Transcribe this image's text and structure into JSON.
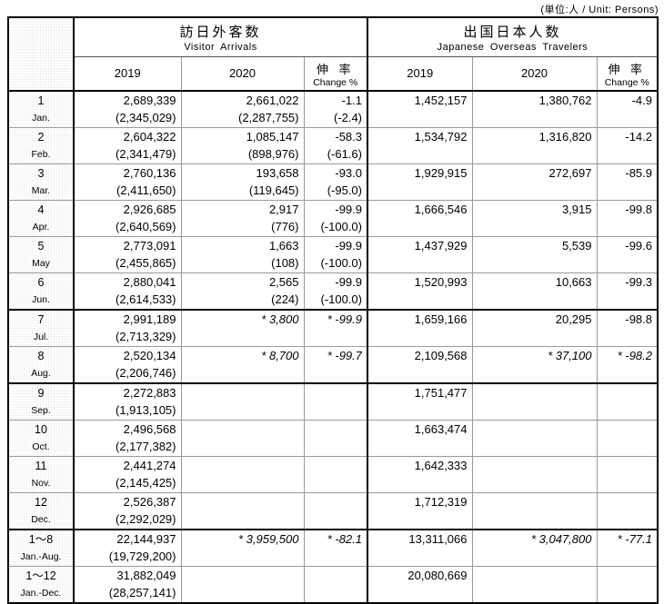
{
  "unit_note": "(単位:人 / Unit: Persons)",
  "table": {
    "groups": [
      {
        "title": "訪日外客数",
        "subtitle": "Visitor Arrivals"
      },
      {
        "title": "出国日本人数",
        "subtitle": "Japanese Overseas Travelers"
      }
    ],
    "col_headers": {
      "y2019": "2019",
      "y2020": "2020",
      "change_jp": "伸 率",
      "change_en": "Change %"
    },
    "rows": [
      {
        "num": "1",
        "abbr": "Jan.",
        "v2019": "2,689,339",
        "v2019p": "(2,345,029)",
        "v2020": "2,661,022",
        "v2020p": "(2,287,755)",
        "vchg": "-1.1",
        "vchgp": "(-2.4)",
        "j2019": "1,452,157",
        "j2020": "1,380,762",
        "jchg": "-4.9",
        "top": "none"
      },
      {
        "num": "2",
        "abbr": "Feb.",
        "v2019": "2,604,322",
        "v2019p": "(2,341,479)",
        "v2020": "1,085,147",
        "v2020p": "(898,976)",
        "vchg": "-58.3",
        "vchgp": "(-61.6)",
        "j2019": "1,534,792",
        "j2020": "1,316,820",
        "jchg": "-14.2",
        "top": "gray"
      },
      {
        "num": "3",
        "abbr": "Mar.",
        "v2019": "2,760,136",
        "v2019p": "(2,411,650)",
        "v2020": "193,658",
        "v2020p": "(119,645)",
        "vchg": "-93.0",
        "vchgp": "(-95.0)",
        "j2019": "1,929,915",
        "j2020": "272,697",
        "jchg": "-85.9",
        "top": "gray"
      },
      {
        "num": "4",
        "abbr": "Apr.",
        "v2019": "2,926,685",
        "v2019p": "(2,640,569)",
        "v2020": "2,917",
        "v2020p": "(776)",
        "vchg": "-99.9",
        "vchgp": "(-100.0)",
        "j2019": "1,666,546",
        "j2020": "3,915",
        "jchg": "-99.8",
        "top": "gray"
      },
      {
        "num": "5",
        "abbr": "May",
        "v2019": "2,773,091",
        "v2019p": "(2,455,865)",
        "v2020": "1,663",
        "v2020p": "(108)",
        "vchg": "-99.9",
        "vchgp": "(-100.0)",
        "j2019": "1,437,929",
        "j2020": "5,539",
        "jchg": "-99.6",
        "top": "gray"
      },
      {
        "num": "6",
        "abbr": "Jun.",
        "v2019": "2,880,041",
        "v2019p": "(2,614,533)",
        "v2020": "2,565",
        "v2020p": "(224)",
        "vchg": "-99.9",
        "vchgp": "(-100.0)",
        "j2019": "1,520,993",
        "j2020": "10,663",
        "jchg": "-99.3",
        "top": "gray"
      },
      {
        "num": "7",
        "abbr": "Jul.",
        "v2019": "2,991,189",
        "v2019p": "(2,713,329)",
        "v2020": "* 3,800",
        "v2020p": "",
        "vchg": "* -99.9",
        "vchgp": "",
        "j2019": "1,659,166",
        "j2020": "20,295",
        "jchg": "-98.8",
        "top": "black"
      },
      {
        "num": "8",
        "abbr": "Aug.",
        "v2019": "2,520,134",
        "v2019p": "(2,206,746)",
        "v2020": "* 8,700",
        "v2020p": "",
        "vchg": "* -99.7",
        "vchgp": "",
        "j2019": "2,109,568",
        "j2020": "* 37,100",
        "jchg": "* -98.2",
        "top": "gray"
      },
      {
        "num": "9",
        "abbr": "Sep.",
        "v2019": "2,272,883",
        "v2019p": "(1,913,105)",
        "v2020": "",
        "v2020p": "",
        "vchg": "",
        "vchgp": "",
        "j2019": "1,751,477",
        "j2020": "",
        "jchg": "",
        "top": "black"
      },
      {
        "num": "10",
        "abbr": "Oct.",
        "v2019": "2,496,568",
        "v2019p": "(2,177,382)",
        "v2020": "",
        "v2020p": "",
        "vchg": "",
        "vchgp": "",
        "j2019": "1,663,474",
        "j2020": "",
        "jchg": "",
        "top": "gray"
      },
      {
        "num": "11",
        "abbr": "Nov.",
        "v2019": "2,441,274",
        "v2019p": "(2,145,425)",
        "v2020": "",
        "v2020p": "",
        "vchg": "",
        "vchgp": "",
        "j2019": "1,642,333",
        "j2020": "",
        "jchg": "",
        "top": "gray"
      },
      {
        "num": "12",
        "abbr": "Dec.",
        "v2019": "2,526,387",
        "v2019p": "(2,292,029)",
        "v2020": "",
        "v2020p": "",
        "vchg": "",
        "vchgp": "",
        "j2019": "1,712,319",
        "j2020": "",
        "jchg": "",
        "top": "gray"
      },
      {
        "num": "1〜8",
        "abbr": "Jan.-Aug.",
        "v2019": "22,144,937",
        "v2019p": "(19,729,200)",
        "v2020": "* 3,959,500",
        "v2020p": "",
        "vchg": "* -82.1",
        "vchgp": "",
        "j2019": "13,311,066",
        "j2020": "* 3,047,800",
        "jchg": "* -77.1",
        "top": "black"
      },
      {
        "num": "1〜12",
        "abbr": "Jan.-Dec.",
        "v2019": "31,882,049",
        "v2019p": "(28,257,141)",
        "v2020": "",
        "v2020p": "",
        "vchg": "",
        "vchgp": "",
        "j2019": "20,080,669",
        "j2020": "",
        "jchg": "",
        "top": "med"
      }
    ]
  }
}
